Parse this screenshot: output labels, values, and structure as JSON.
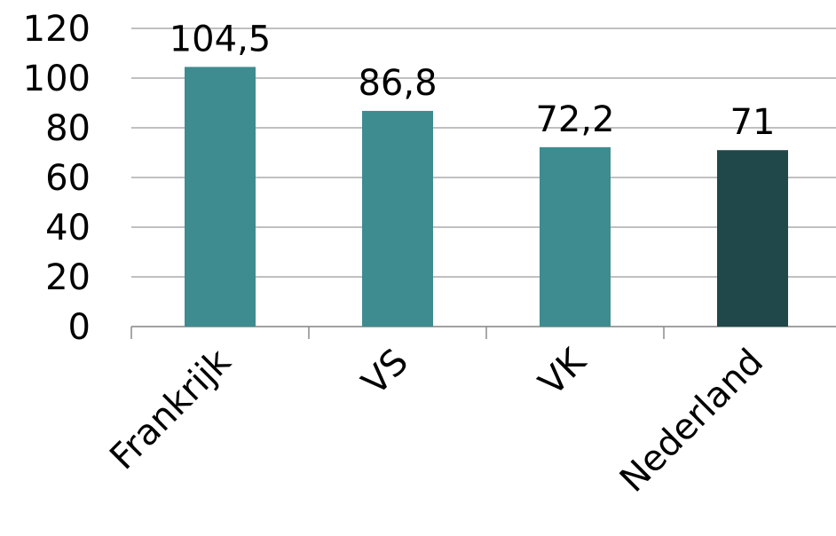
{
  "chart_data": {
    "type": "bar",
    "categories": [
      "Frankrijk",
      "VS",
      "VK",
      "Nederland"
    ],
    "values": [
      104.5,
      86.8,
      72.2,
      71
    ],
    "value_labels": [
      "104,5",
      "86,8",
      "72,2",
      "71"
    ],
    "colors": [
      "#3e8c90",
      "#3e8c90",
      "#3e8c90",
      "#204749"
    ],
    "ylim": [
      0,
      120
    ],
    "yticks": [
      0,
      20,
      40,
      60,
      80,
      100,
      120
    ],
    "grid": true
  }
}
